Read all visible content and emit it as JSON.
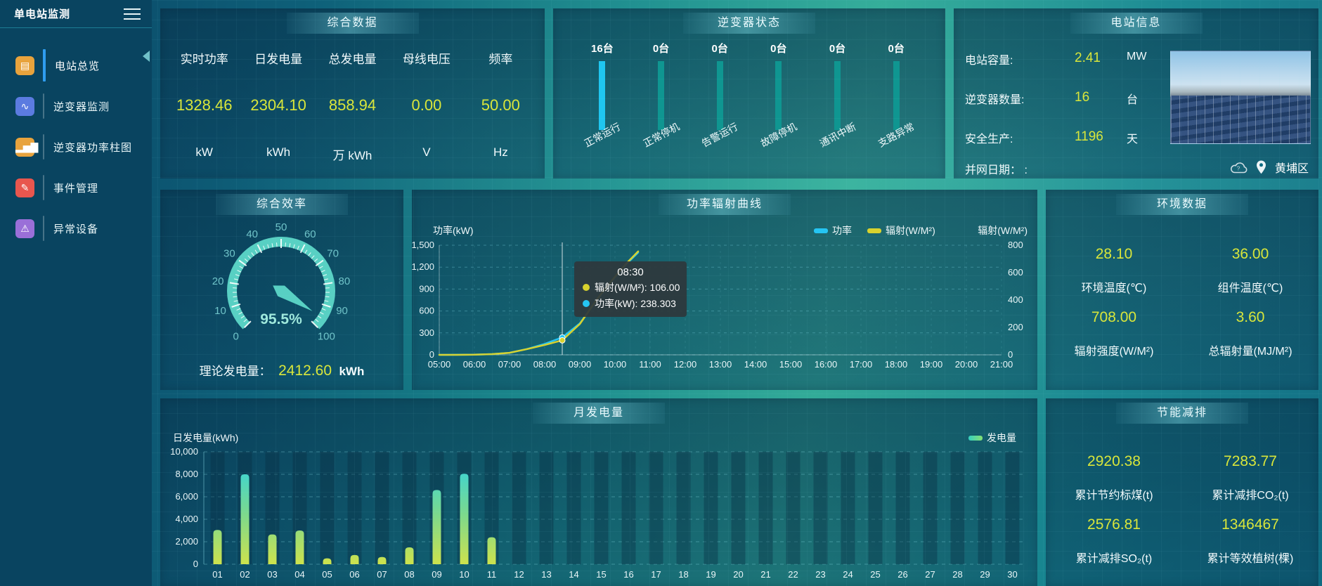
{
  "sidebar": {
    "title": "单电站监测",
    "items": [
      {
        "id": "overview",
        "label": "电站总览",
        "glyph": "▤",
        "color": "#e8a33d",
        "active": true
      },
      {
        "id": "inverter-monitor",
        "label": "逆变器监测",
        "glyph": "∿",
        "color": "#5b7be0",
        "active": false
      },
      {
        "id": "inverter-power",
        "label": "逆变器功率柱图",
        "glyph": "▂▅▇",
        "color": "#e8a33d",
        "active": false
      },
      {
        "id": "event-management",
        "label": "事件管理",
        "glyph": "✎",
        "color": "#e8564e",
        "active": false
      },
      {
        "id": "abnormal-device",
        "label": "异常设备",
        "glyph": "⚠",
        "color": "#9a6fd8",
        "active": false
      }
    ]
  },
  "overview": {
    "title": "综合数据",
    "stats": [
      {
        "label": "实时功率",
        "value": "1328.46",
        "unit": "kW"
      },
      {
        "label": "日发电量",
        "value": "2304.10",
        "unit": "kWh"
      },
      {
        "label": "总发电量",
        "value": "858.94",
        "unit": "万 kWh"
      },
      {
        "label": "母线电压",
        "value": "0.00",
        "unit": "V"
      },
      {
        "label": "频率",
        "value": "50.00",
        "unit": "Hz"
      }
    ]
  },
  "inverter_status": {
    "title": "逆变器状态",
    "unit": "台",
    "items": [
      {
        "count": "16台",
        "label": "正常运行",
        "color": "#1fc6f0"
      },
      {
        "count": "0台",
        "label": "正常停机",
        "color": "#0f9691"
      },
      {
        "count": "0台",
        "label": "告警运行",
        "color": "#0f9691"
      },
      {
        "count": "0台",
        "label": "故障停机",
        "color": "#0f9691"
      },
      {
        "count": "0台",
        "label": "通讯中断",
        "color": "#0f9691"
      },
      {
        "count": "0台",
        "label": "支路异常",
        "color": "#0f9691"
      }
    ]
  },
  "station_info": {
    "title": "电站信息",
    "rows": [
      {
        "label": "电站容量:",
        "value": "2.41",
        "unit": "MW"
      },
      {
        "label": "逆变器数量:",
        "value": "16",
        "unit": "台"
      },
      {
        "label": "安全生产:",
        "value": "1196",
        "unit": "天"
      },
      {
        "label": "并网日期： :",
        "value": "",
        "unit": ""
      }
    ],
    "area": "黄埔区"
  },
  "efficiency": {
    "title": "综合效率",
    "theory_label": "理论发电量：",
    "theory_value": "2412.60",
    "theory_unit": "kWh"
  },
  "curve": {
    "title": "功率辐射曲线"
  },
  "environment": {
    "title": "环境数据",
    "cells": [
      {
        "value": "28.10",
        "label": "环境温度(℃)"
      },
      {
        "value": "36.00",
        "label": "组件温度(℃)"
      },
      {
        "value": "708.00",
        "label": "辐射强度(W/M²)"
      },
      {
        "value": "3.60",
        "label": "总辐射量(MJ/M²)"
      }
    ]
  },
  "monthly": {
    "title": "月发电量"
  },
  "saving": {
    "title": "节能减排",
    "cells": [
      {
        "value": "2920.38",
        "label": "累计节约标煤(t)"
      },
      {
        "value": "7283.77",
        "label": "累计减排CO₂(t)"
      },
      {
        "value": "2576.81",
        "label": "累计减排SO₂(t)"
      },
      {
        "value": "1346467",
        "label": "累计等效植树(棵)"
      }
    ]
  },
  "colors": {
    "accent_yellow": "#d9e63a",
    "power_cyan": "#25c5f3",
    "radiation_yellow": "#d8d22e",
    "gauge_teal": "#58d0c3",
    "active_menu_blue": "#2f9df0"
  },
  "chart_data": [
    {
      "id": "efficiency_gauge",
      "type": "gauge",
      "title": "综合效率",
      "value": 95.5,
      "display": "95.5%",
      "min": 0,
      "max": 100,
      "major_tick": 10,
      "tick_labels": [
        "0",
        "10",
        "20",
        "30",
        "40",
        "50",
        "60",
        "70",
        "80",
        "90",
        "100"
      ],
      "color": "#58d0c3"
    },
    {
      "id": "power_radiation",
      "type": "line",
      "title": "功率辐射曲线",
      "x_ticks": [
        "05:00",
        "06:00",
        "07:00",
        "08:00",
        "09:00",
        "10:00",
        "11:00",
        "12:00",
        "13:00",
        "14:00",
        "15:00",
        "16:00",
        "17:00",
        "18:00",
        "19:00",
        "20:00",
        "21:00"
      ],
      "x_range_hours": [
        5,
        21
      ],
      "left_axis": {
        "name": "功率(kW)",
        "min": 0,
        "max": 1500,
        "ticks": [
          0,
          300,
          600,
          900,
          1200,
          1500
        ]
      },
      "right_axis": {
        "name": "辐射(W/M²)",
        "min": 0,
        "max": 800,
        "ticks": [
          0,
          200,
          400,
          600,
          800
        ]
      },
      "legend": [
        "功率",
        "辐射(W/M²)"
      ],
      "series": [
        {
          "name": "功率",
          "axis": "left",
          "color": "#25c5f3",
          "points": [
            [
              5,
              0
            ],
            [
              5.5,
              1
            ],
            [
              6,
              3
            ],
            [
              6.5,
              10
            ],
            [
              7,
              28
            ],
            [
              7.5,
              80
            ],
            [
              8,
              150
            ],
            [
              8.5,
              238.3
            ],
            [
              9,
              430
            ],
            [
              9.5,
              760
            ],
            [
              10,
              1060
            ],
            [
              10.3,
              1230
            ],
            [
              10.66,
              1400
            ]
          ]
        },
        {
          "name": "辐射(W/M²)",
          "axis": "right",
          "color": "#d8d22e",
          "points": [
            [
              5,
              0
            ],
            [
              5.5,
              0
            ],
            [
              6,
              1
            ],
            [
              6.5,
              5
            ],
            [
              7,
              15
            ],
            [
              7.5,
              42
            ],
            [
              8,
              72
            ],
            [
              8.5,
              106
            ],
            [
              9,
              225
            ],
            [
              9.5,
              410
            ],
            [
              10,
              570
            ],
            [
              10.3,
              660
            ],
            [
              10.66,
              755
            ]
          ]
        }
      ],
      "crosshair_time": 8.5,
      "tooltip": {
        "time": "08:30",
        "rows": [
          {
            "label": "辐射(W/M²)",
            "value": "106.00",
            "color": "#d8d22e"
          },
          {
            "label": "功率(kW)",
            "value": "238.303",
            "color": "#25c5f3"
          }
        ]
      }
    },
    {
      "id": "monthly_energy",
      "type": "bar",
      "title": "月发电量",
      "ylabel": "日发电量(kWh)",
      "legend": "发电量",
      "ylim": [
        0,
        10000
      ],
      "yticks": [
        0,
        2000,
        4000,
        6000,
        8000,
        10000
      ],
      "categories": [
        "01",
        "02",
        "03",
        "04",
        "05",
        "06",
        "07",
        "08",
        "09",
        "10",
        "11",
        "12",
        "13",
        "14",
        "15",
        "16",
        "17",
        "18",
        "19",
        "20",
        "21",
        "22",
        "23",
        "24",
        "25",
        "26",
        "27",
        "28",
        "29",
        "30"
      ],
      "values": [
        3050,
        8000,
        2650,
        3000,
        520,
        820,
        640,
        1500,
        6600,
        8050,
        2400,
        0,
        0,
        0,
        0,
        0,
        0,
        0,
        0,
        0,
        0,
        0,
        0,
        0,
        0,
        0,
        0,
        0,
        0,
        0
      ],
      "gradient": [
        "#28d2ea",
        "#7bd98e",
        "#cde24d"
      ]
    },
    {
      "id": "inverter_status_bars",
      "type": "bar",
      "title": "逆变器状态",
      "unit": "台",
      "categories": [
        "正常运行",
        "正常停机",
        "告警运行",
        "故障停机",
        "通讯中断",
        "支路异常"
      ],
      "values": [
        16,
        0,
        0,
        0,
        0,
        0
      ]
    }
  ]
}
